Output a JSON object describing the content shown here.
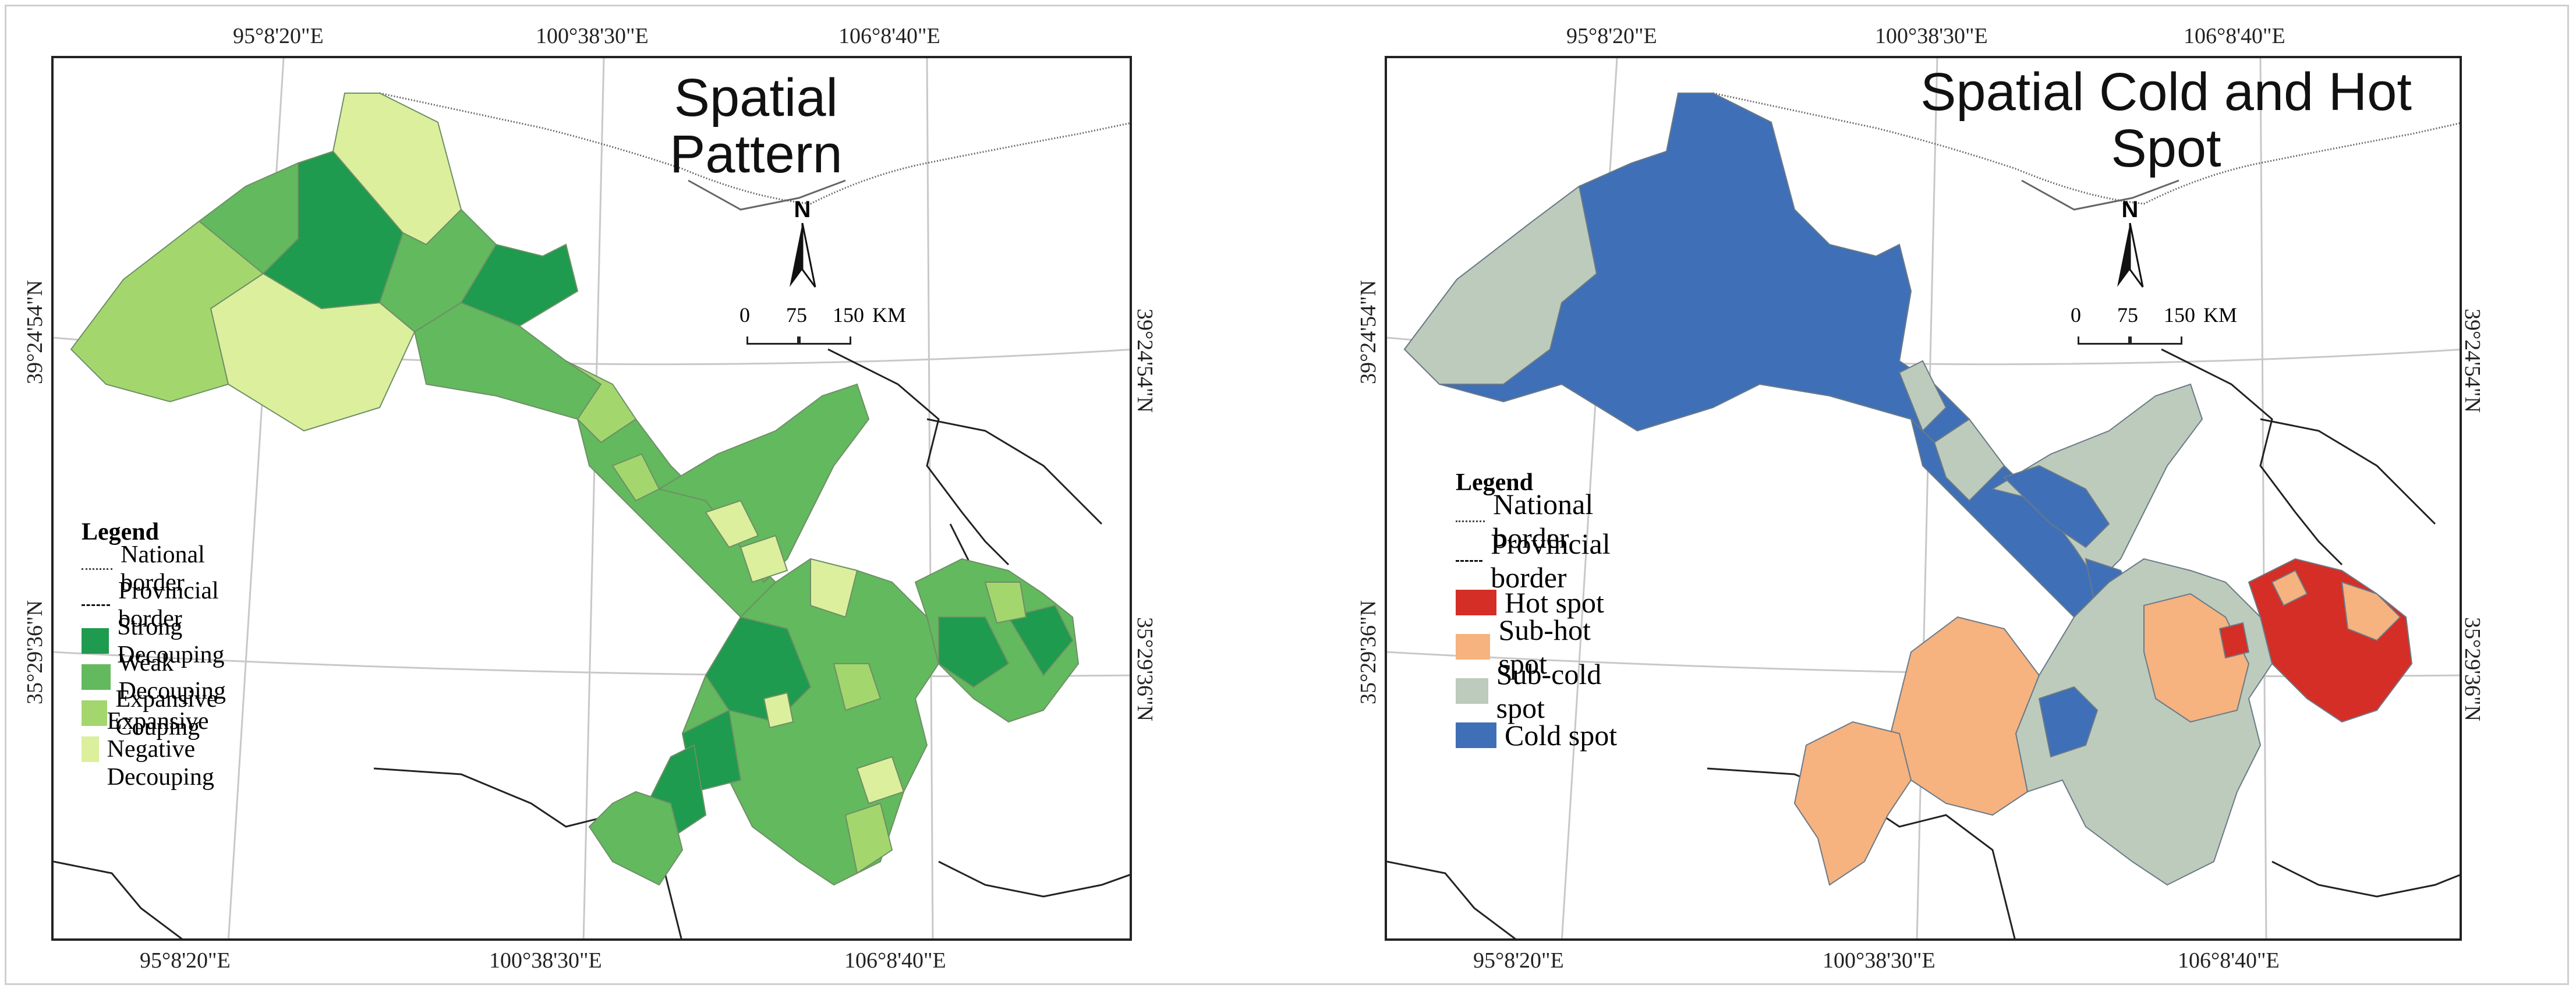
{
  "coordinates": {
    "lon1": "95°8'20\"E",
    "lon2": "100°38'30\"E",
    "lon3": "106°8'40\"E",
    "lat1": "39°24'54\"N",
    "lat2": "35°29'36\"N"
  },
  "scale_bar": {
    "t0": "0",
    "t1": "75",
    "t2": "150",
    "unit": "KM"
  },
  "north_arrow": {
    "letter": "N"
  },
  "left_map": {
    "title": "Spatial Pattern",
    "legend": {
      "title": "Legend",
      "items": [
        {
          "label": "National border",
          "kind": "line"
        },
        {
          "label": "Provincial border",
          "kind": "dashdot"
        },
        {
          "label": "Strong Decouping",
          "color": "#1e9b4e"
        },
        {
          "label": "Weak Decouping",
          "color": "#63b95e"
        },
        {
          "label": "Expansive Couping",
          "color": "#a3d76e"
        },
        {
          "label": "Expansive Negative Decouping",
          "color": "#dcef9c"
        }
      ]
    }
  },
  "right_map": {
    "title_line1": "Spatial Cold and Hot",
    "title_line2": "Spot",
    "legend": {
      "title": "Legend",
      "items": [
        {
          "label": "National border",
          "kind": "line"
        },
        {
          "label": "Provincial border",
          "kind": "dashdot"
        },
        {
          "label": "Hot spot",
          "color": "#d42e27"
        },
        {
          "label": "Sub-hot spot",
          "color": "#f6b27f"
        },
        {
          "label": "Sub-cold spot",
          "color": "#bccbbc"
        },
        {
          "label": "Cold spot",
          "color": "#3f6fb7"
        }
      ]
    }
  }
}
